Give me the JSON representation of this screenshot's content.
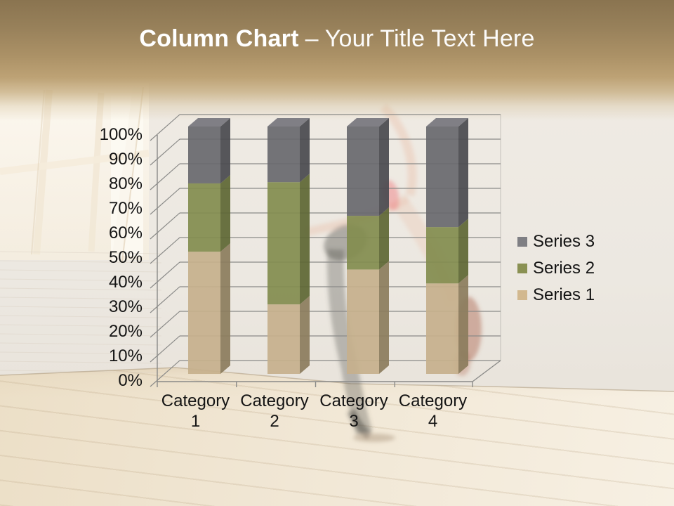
{
  "header": {
    "title_bold": "Column Chart",
    "title_rest": "– Your Title Text Here",
    "text_color": "#ffffff",
    "band_color_top": "#8a7450",
    "band_color_bottom": "#c6ad80"
  },
  "chart_data": {
    "type": "bar",
    "subtype": "100%-stacked-column-3d",
    "title": "",
    "xlabel": "",
    "ylabel": "",
    "gridlines": true,
    "categories": [
      "Category 1",
      "Category 2",
      "Category 3",
      "Category 4"
    ],
    "series": [
      {
        "name": "Series 1",
        "percent_of_total": [
          49.4,
          28.1,
          42.2,
          36.6
        ],
        "color_front": "#c5b08c",
        "color_side": "#8c7d5e",
        "legend_swatch": "#d2b88e"
      },
      {
        "name": "Series 2",
        "percent_of_total": [
          27.6,
          49.4,
          21.7,
          22.8
        ],
        "color_front": "#828c4e",
        "color_side": "#5f6735",
        "legend_swatch": "#8a9153"
      },
      {
        "name": "Series 3",
        "percent_of_total": [
          23.0,
          22.5,
          36.1,
          40.7
        ],
        "color_front": "#68686e",
        "color_side": "#4a4a50",
        "color_top": "#797980",
        "legend_swatch": "#7f7f84"
      }
    ],
    "y_axis": {
      "min": 0,
      "max": 100,
      "ticks": [
        "0%",
        "10%",
        "20%",
        "30%",
        "40%",
        "50%",
        "60%",
        "70%",
        "80%",
        "90%",
        "100%"
      ]
    },
    "legend": {
      "position": "right",
      "entries_top_to_bottom": [
        "Series 3",
        "Series 2",
        "Series 1"
      ]
    }
  }
}
